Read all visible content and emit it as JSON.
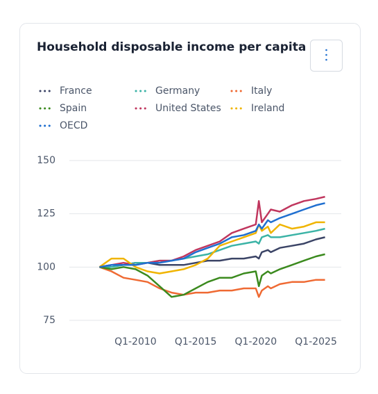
{
  "chart_data": {
    "type": "line",
    "title": "Household disposable income per capita",
    "x": [
      2007,
      2008,
      2009,
      2010,
      2011,
      2012,
      2013,
      2014,
      2015,
      2016,
      2017,
      2018,
      2019,
      2020,
      2020.25,
      2020.5,
      2021,
      2021.25,
      2022,
      2023,
      2024,
      2025,
      2025.75
    ],
    "xlim": [
      2004.5,
      2027.1
    ],
    "xticks": [
      {
        "value": 2010,
        "label": "Q1-2010"
      },
      {
        "value": 2015,
        "label": "Q1-2015"
      },
      {
        "value": 2020,
        "label": "Q1-2020"
      },
      {
        "value": 2025,
        "label": "Q1-2025"
      }
    ],
    "ylim": [
      75,
      150
    ],
    "yticks": [
      75,
      100,
      125,
      150
    ],
    "grid": true,
    "series": [
      {
        "name": "France",
        "color": "#3b4466",
        "values": [
          100,
          101,
          101,
          102,
          102,
          101,
          101,
          101,
          102,
          103,
          103,
          104,
          104,
          105,
          104,
          107,
          108,
          107,
          109,
          110,
          111,
          113,
          114
        ]
      },
      {
        "name": "Germany",
        "color": "#3bb3a6",
        "values": [
          100,
          100,
          101,
          102,
          102,
          103,
          103,
          104,
          105,
          106,
          108,
          110,
          111,
          112,
          111,
          114,
          115,
          114,
          114,
          115,
          116,
          117,
          118
        ]
      },
      {
        "name": "Italy",
        "color": "#ef6a33",
        "values": [
          100,
          98,
          95,
          94,
          93,
          90,
          88,
          87,
          88,
          88,
          89,
          89,
          90,
          90,
          86,
          89,
          91,
          90,
          92,
          93,
          93,
          94,
          94
        ]
      },
      {
        "name": "Spain",
        "color": "#3b8a1e",
        "values": [
          100,
          99,
          100,
          99,
          96,
          91,
          86,
          87,
          90,
          93,
          95,
          95,
          97,
          98,
          91,
          96,
          98,
          97,
          99,
          101,
          103,
          105,
          106
        ]
      },
      {
        "name": "United States",
        "color": "#c0365e",
        "values": [
          100,
          101,
          102,
          101,
          102,
          103,
          103,
          105,
          108,
          110,
          112,
          116,
          118,
          120,
          131,
          121,
          125,
          127,
          126,
          129,
          131,
          132,
          133
        ]
      },
      {
        "name": "Ireland",
        "color": "#f0b400",
        "values": [
          100,
          104,
          104,
          100,
          98,
          97,
          98,
          99,
          101,
          104,
          110,
          112,
          114,
          116,
          120,
          117,
          119,
          116,
          120,
          118,
          119,
          121,
          121
        ]
      },
      {
        "name": "OECD",
        "color": "#1f6fd0",
        "values": [
          100,
          101,
          101,
          101,
          102,
          102,
          103,
          104,
          107,
          109,
          111,
          114,
          115,
          117,
          120,
          118,
          122,
          121,
          123,
          125,
          127,
          129,
          130
        ]
      }
    ]
  }
}
